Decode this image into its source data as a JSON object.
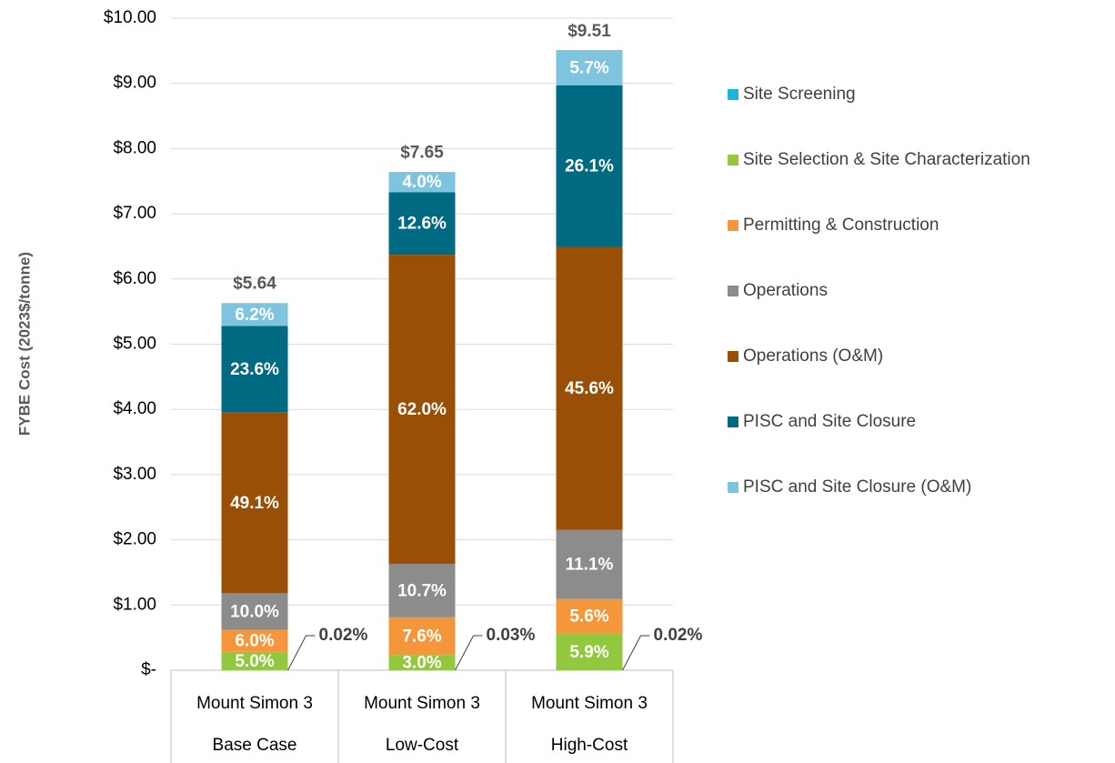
{
  "chart_data": {
    "type": "stacked_bar",
    "y_label": "FYBE Cost (2023$/tonne)",
    "categories": [
      [
        "Mount Simon 3",
        "Base Case"
      ],
      [
        "Mount Simon 3",
        "Low-Cost"
      ],
      [
        "Mount Simon 3",
        "High-Cost"
      ]
    ],
    "ylim": [
      0,
      10
    ],
    "yticks": [
      {
        "value": 0,
        "label": "$-"
      },
      {
        "value": 1,
        "label": "$1.00"
      },
      {
        "value": 2,
        "label": "$2.00"
      },
      {
        "value": 3,
        "label": "$3.00"
      },
      {
        "value": 4,
        "label": "$4.00"
      },
      {
        "value": 5,
        "label": "$5.00"
      },
      {
        "value": 6,
        "label": "$6.00"
      },
      {
        "value": 7,
        "label": "$7.00"
      },
      {
        "value": 8,
        "label": "$8.00"
      },
      {
        "value": 9,
        "label": "$9.00"
      },
      {
        "value": 10,
        "label": "$10.00"
      }
    ],
    "grid": true,
    "legend": "right",
    "series": [
      {
        "name": "Site Screening",
        "color": "#1cb4da",
        "values": [
          0.001,
          0.002,
          0.002
        ],
        "labels": [
          "0.02%",
          "0.03%",
          "0.02%"
        ],
        "callout": true
      },
      {
        "name": "Site Selection & Site Characterization",
        "color": "#92c83e",
        "values": [
          0.28,
          0.23,
          0.56
        ],
        "labels": [
          "5.0%",
          "3.0%",
          "5.9%"
        ]
      },
      {
        "name": "Permitting & Construction",
        "color": "#f5963a",
        "values": [
          0.34,
          0.58,
          0.53
        ],
        "labels": [
          "6.0%",
          "7.6%",
          "5.6%"
        ]
      },
      {
        "name": "Operations",
        "color": "#8c8c8c",
        "values": [
          0.56,
          0.82,
          1.06
        ],
        "labels": [
          "10.0%",
          "10.7%",
          "11.1%"
        ]
      },
      {
        "name": "Operations (O&M)",
        "color": "#994f06",
        "values": [
          2.77,
          4.74,
          4.34
        ],
        "labels": [
          "49.1%",
          "62.0%",
          "45.6%"
        ]
      },
      {
        "name": "PISC and Site Closure",
        "color": "#006a82",
        "values": [
          1.33,
          0.96,
          2.48
        ],
        "labels": [
          "23.6%",
          "12.6%",
          "26.1%"
        ]
      },
      {
        "name": "PISC and Site Closure (O&M)",
        "color": "#7fc4de",
        "values": [
          0.35,
          0.31,
          0.54
        ],
        "labels": [
          "6.2%",
          "4.0%",
          "5.7%"
        ]
      }
    ],
    "totals": [
      5.64,
      7.65,
      9.51
    ],
    "total_labels": [
      "$5.64",
      "$7.65",
      "$9.51"
    ]
  }
}
